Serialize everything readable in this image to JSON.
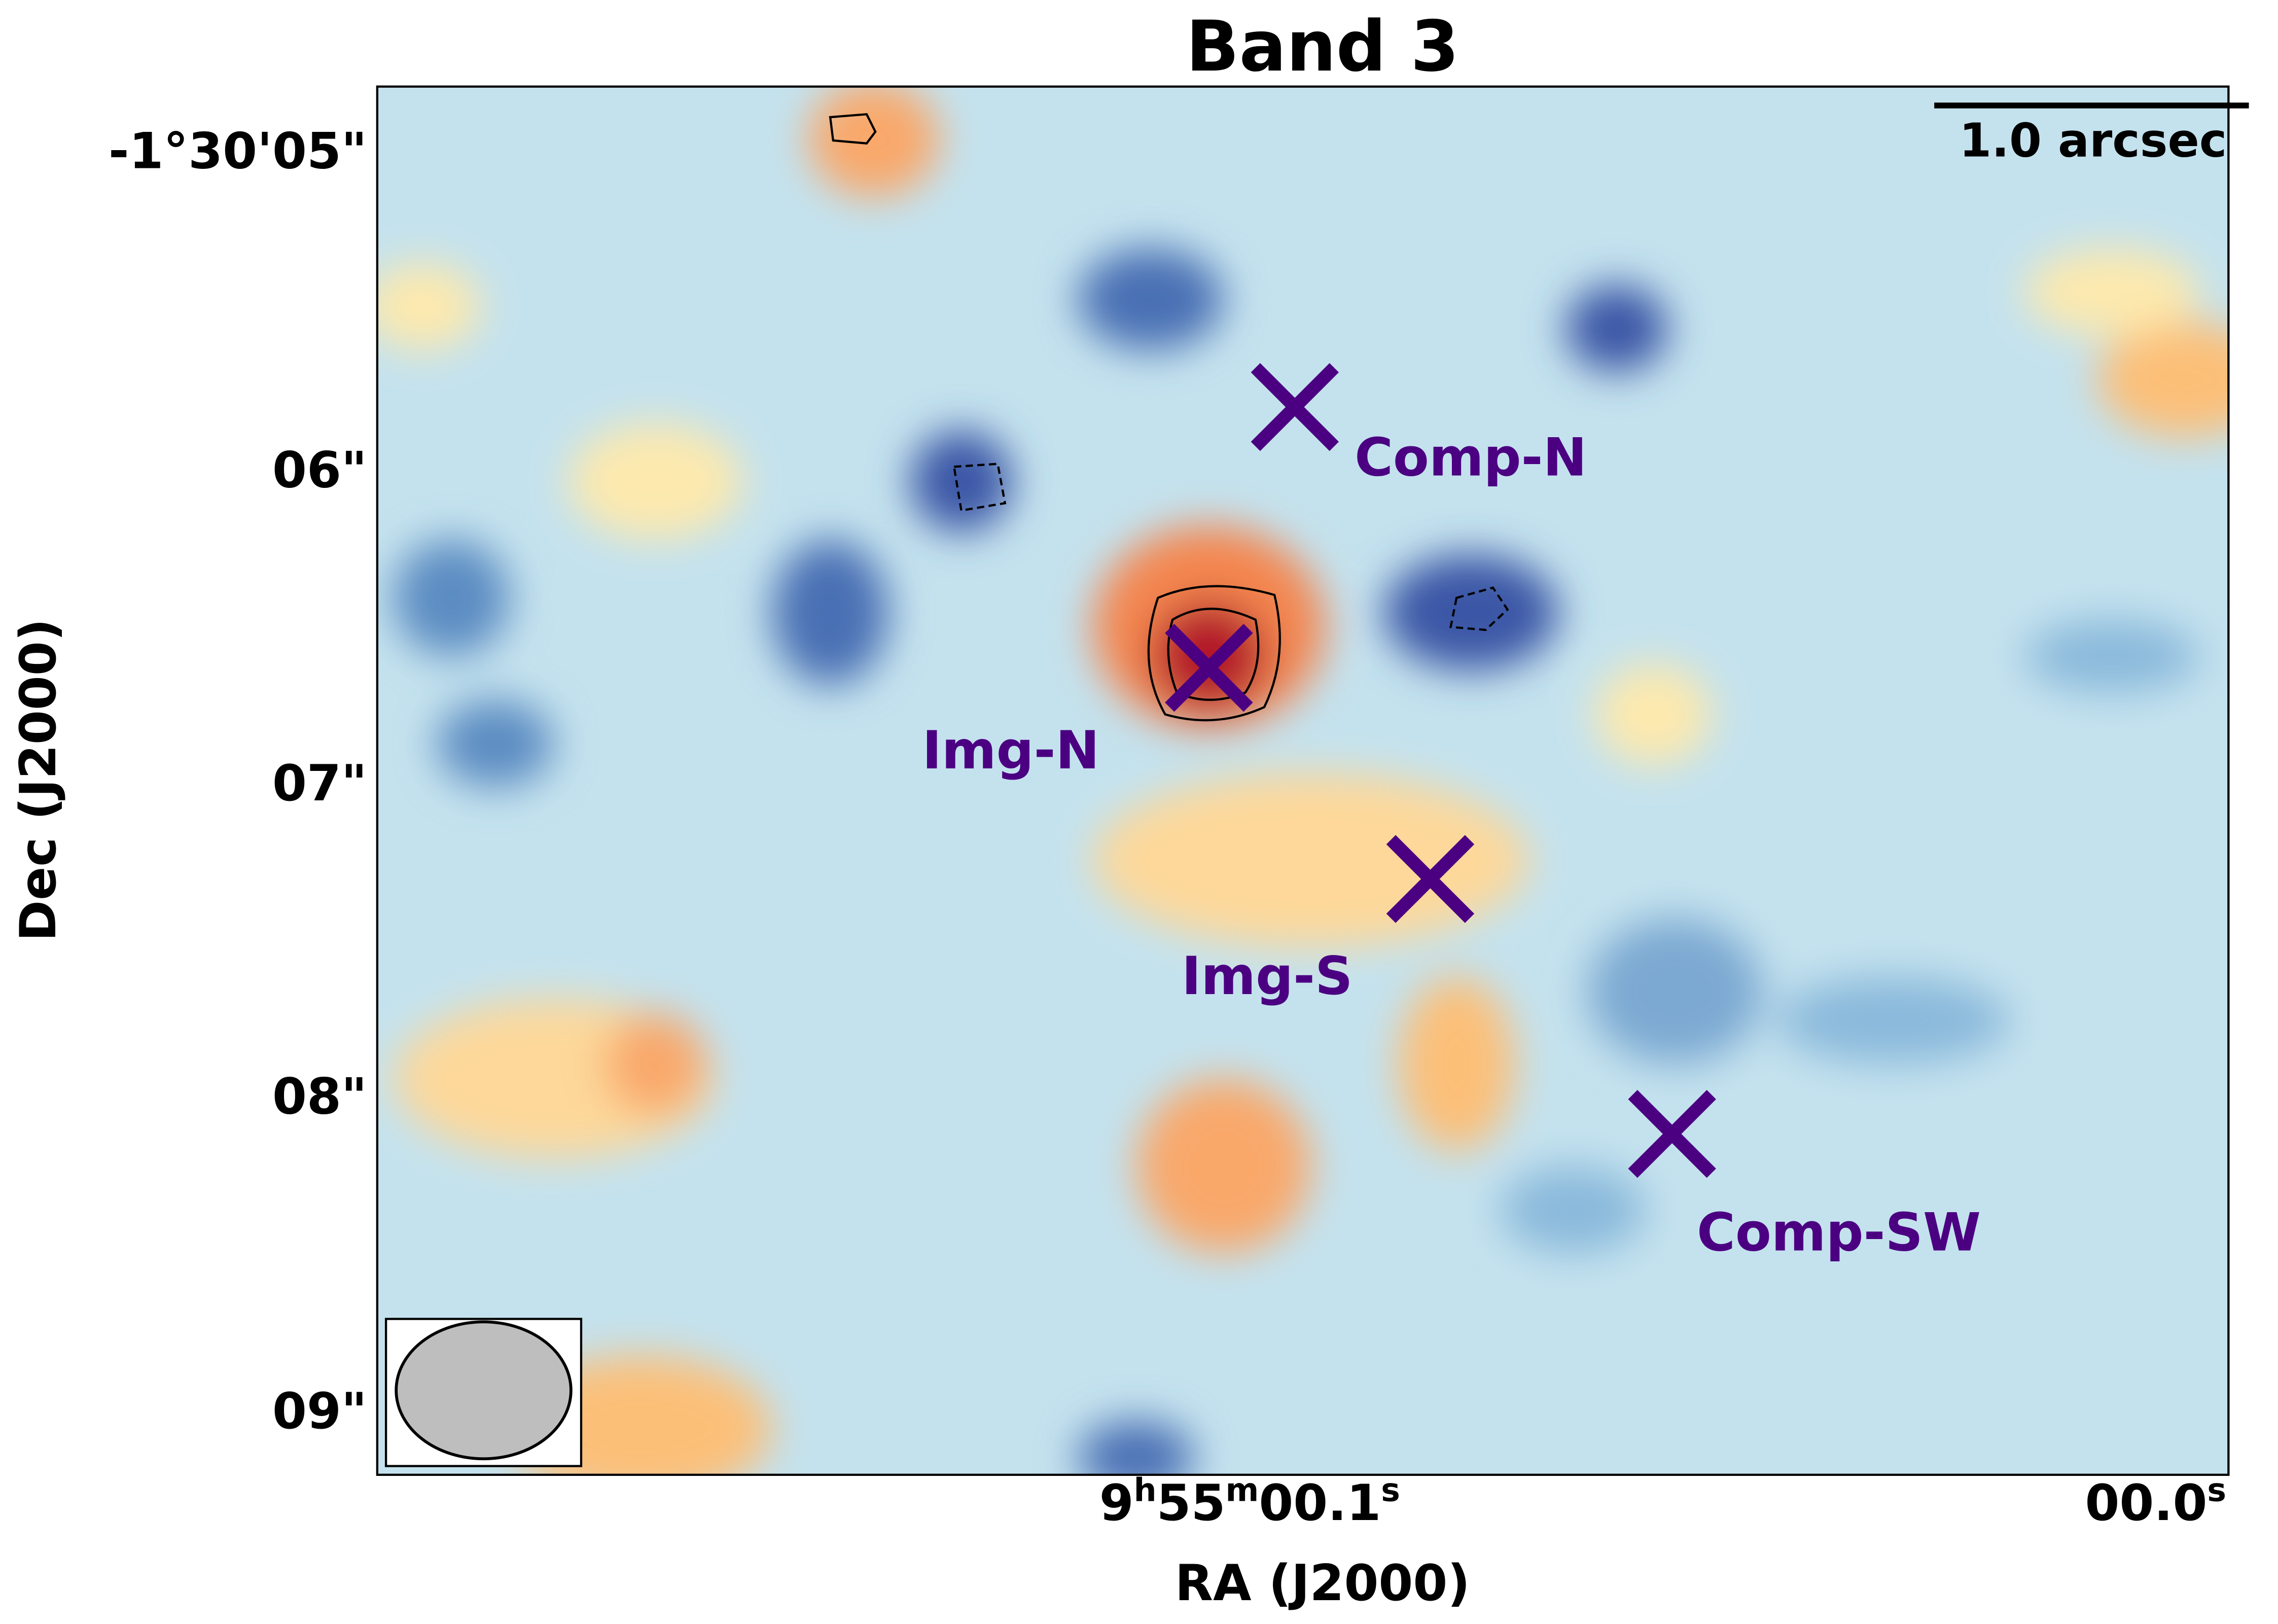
{
  "figure": {
    "title": "Band 3",
    "xlabel": "RA (J2000)",
    "ylabel": "Dec (J2000)",
    "yticks": [
      "-1°30'05\"",
      "06\"",
      "07\"",
      "08\"",
      "09\""
    ],
    "xticks": [
      {
        "parts": [
          "9",
          "h",
          "55",
          "m",
          "00.1",
          "s"
        ]
      },
      {
        "parts": [
          "00.0",
          "s"
        ]
      }
    ],
    "scalebar": "1.0 arcsec",
    "markers": [
      "Comp-N",
      "Img-N",
      "Img-S",
      "Comp-SW"
    ]
  }
}
